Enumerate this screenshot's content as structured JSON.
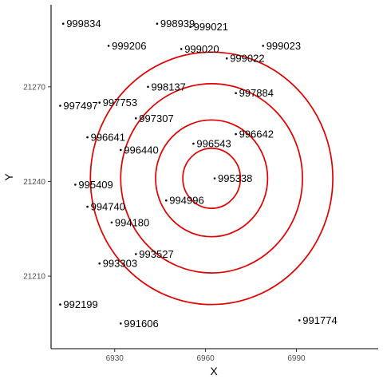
{
  "chart_data": {
    "type": "scatter",
    "title": "",
    "xlabel": "X",
    "ylabel": "Y",
    "xlim": [
      6909,
      7017
    ],
    "ylim": [
      21187,
      21296
    ],
    "x_ticks": [
      6930,
      6960,
      6990
    ],
    "x_tick_labels": [
      "6930",
      "6960",
      "6990"
    ],
    "y_ticks": [
      21210,
      21240,
      21270
    ],
    "y_tick_labels": [
      "21210",
      "21240",
      "21270"
    ],
    "grid": false,
    "colors": {
      "circle": "#e00000",
      "point": "#000000",
      "axis": "#000000"
    },
    "circles": {
      "center": [
        6962,
        21241
      ],
      "radii": [
        9.5,
        18.5,
        30,
        40
      ]
    },
    "points": [
      {
        "id": "999834",
        "x": 6913,
        "y": 21290
      },
      {
        "id": "998939",
        "x": 6944,
        "y": 21290
      },
      {
        "id": "999021",
        "x": 6955,
        "y": 21289
      },
      {
        "id": "999206",
        "x": 6928,
        "y": 21283
      },
      {
        "id": "999020",
        "x": 6952,
        "y": 21282
      },
      {
        "id": "999023",
        "x": 6979,
        "y": 21283
      },
      {
        "id": "999022",
        "x": 6967,
        "y": 21279
      },
      {
        "id": "998137",
        "x": 6941,
        "y": 21270
      },
      {
        "id": "997884",
        "x": 6970,
        "y": 21268
      },
      {
        "id": "997497",
        "x": 6912,
        "y": 21264
      },
      {
        "id": "997753",
        "x": 6925,
        "y": 21265
      },
      {
        "id": "997307",
        "x": 6937,
        "y": 21260
      },
      {
        "id": "996641",
        "x": 6921,
        "y": 21254
      },
      {
        "id": "996642",
        "x": 6970,
        "y": 21255
      },
      {
        "id": "996543",
        "x": 6956,
        "y": 21252
      },
      {
        "id": "996440",
        "x": 6932,
        "y": 21250
      },
      {
        "id": "995338",
        "x": 6963,
        "y": 21241
      },
      {
        "id": "995409",
        "x": 6917,
        "y": 21239
      },
      {
        "id": "994996",
        "x": 6947,
        "y": 21234
      },
      {
        "id": "994740",
        "x": 6921,
        "y": 21232
      },
      {
        "id": "994180",
        "x": 6929,
        "y": 21227
      },
      {
        "id": "993527",
        "x": 6937,
        "y": 21217
      },
      {
        "id": "993303",
        "x": 6925,
        "y": 21214
      },
      {
        "id": "992199",
        "x": 6912,
        "y": 21201
      },
      {
        "id": "991606",
        "x": 6932,
        "y": 21195
      },
      {
        "id": "991774",
        "x": 6991,
        "y": 21196
      }
    ]
  }
}
